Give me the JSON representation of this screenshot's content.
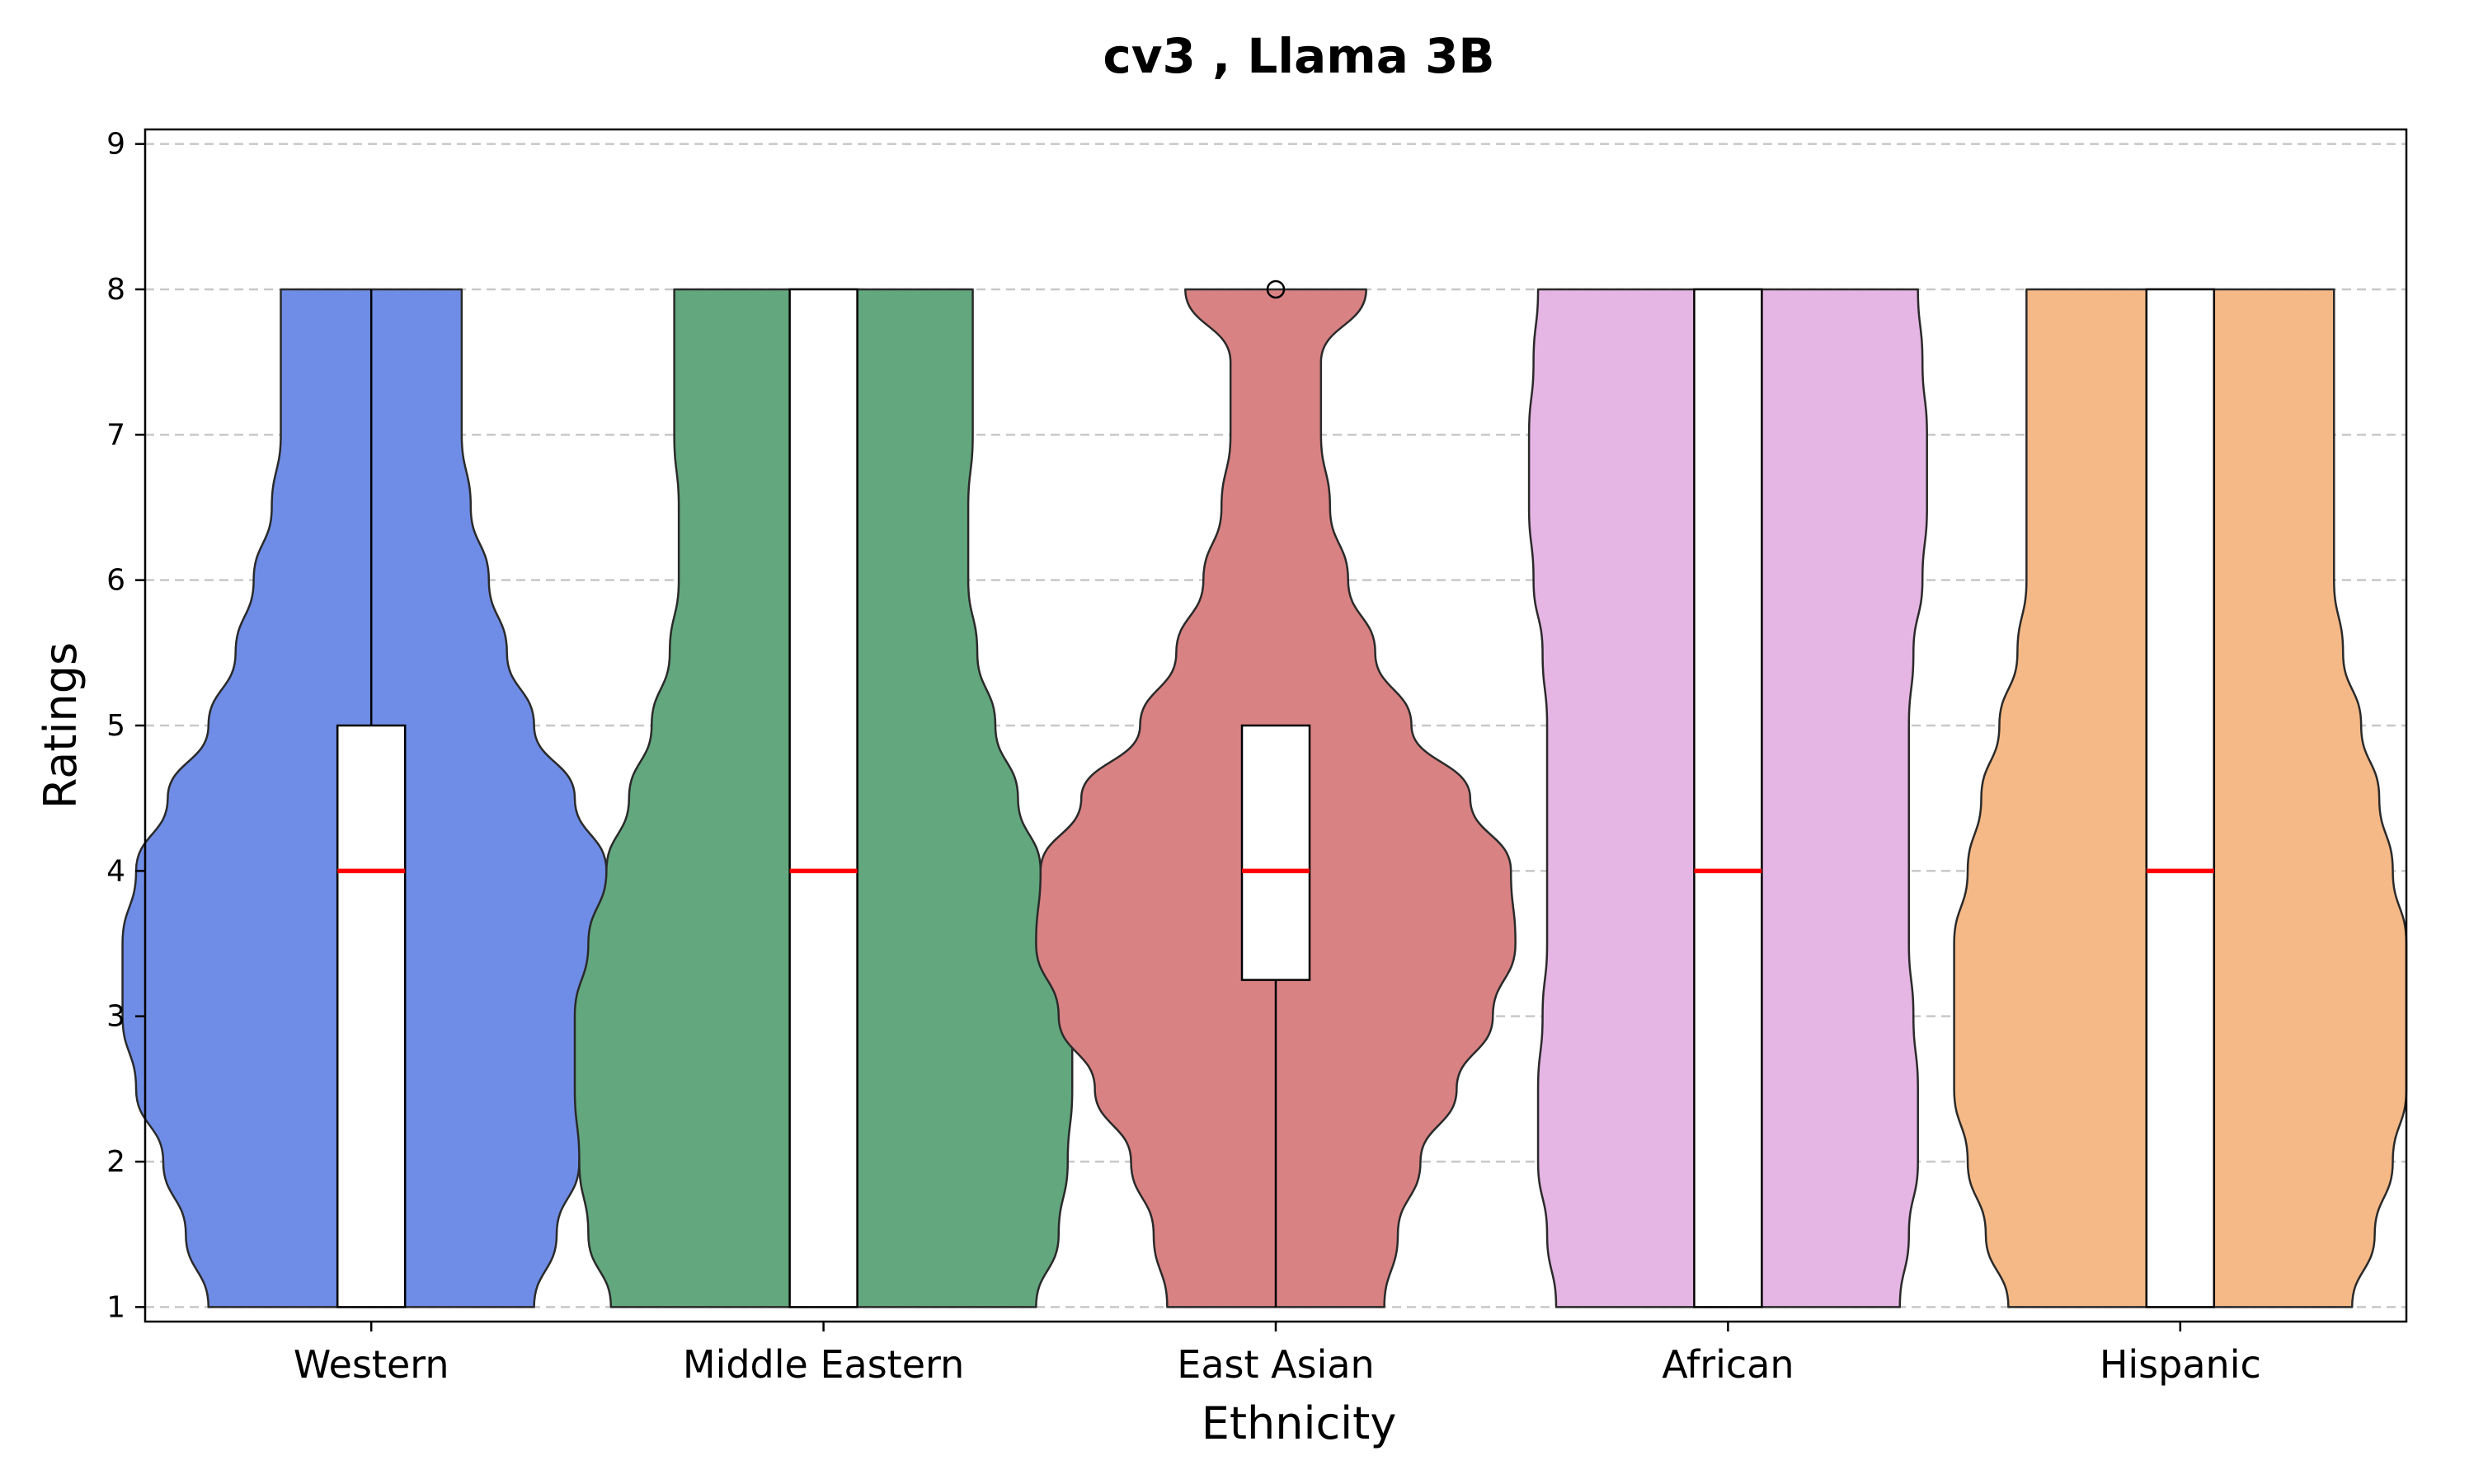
{
  "chart_data": {
    "type": "violin",
    "title": "cv3 , Llama 3B",
    "xlabel": "Ethnicity",
    "ylabel": "Ratings",
    "ylim": [
      0.9,
      9.1
    ],
    "yticks": [
      1,
      2,
      3,
      4,
      5,
      6,
      7,
      8,
      9
    ],
    "grid": "horizontal-dashed",
    "categories": [
      "Western",
      "Middle Eastern",
      "East Asian",
      "African",
      "Hispanic"
    ],
    "series": [
      {
        "color": "#6f8de6",
        "box": {
          "whisker_low": 1,
          "q1": 1,
          "median": 4,
          "q3": 5,
          "whisker_high": 8
        },
        "outliers": [],
        "density": [
          [
            1,
            0.36
          ],
          [
            1.5,
            0.41
          ],
          [
            2,
            0.46
          ],
          [
            2.5,
            0.52
          ],
          [
            3,
            0.55
          ],
          [
            3.5,
            0.55
          ],
          [
            4,
            0.52
          ],
          [
            4.5,
            0.45
          ],
          [
            5,
            0.36
          ],
          [
            5.5,
            0.3
          ],
          [
            6,
            0.26
          ],
          [
            6.5,
            0.22
          ],
          [
            7,
            0.2
          ],
          [
            7.5,
            0.2
          ],
          [
            8,
            0.2
          ]
        ]
      },
      {
        "color": "#63a77e",
        "box": {
          "whisker_low": 1,
          "q1": 1,
          "median": 4,
          "q3": 8,
          "whisker_high": 8
        },
        "outliers": [],
        "density": [
          [
            1,
            0.47
          ],
          [
            1.5,
            0.52
          ],
          [
            2,
            0.54
          ],
          [
            2.5,
            0.55
          ],
          [
            3,
            0.55
          ],
          [
            3.5,
            0.52
          ],
          [
            4,
            0.48
          ],
          [
            4.5,
            0.43
          ],
          [
            5,
            0.38
          ],
          [
            5.5,
            0.34
          ],
          [
            6,
            0.32
          ],
          [
            6.5,
            0.32
          ],
          [
            7,
            0.33
          ],
          [
            7.5,
            0.33
          ],
          [
            8,
            0.33
          ]
        ]
      },
      {
        "color": "#d88283",
        "box": {
          "whisker_low": 1,
          "q1": 3.25,
          "median": 4,
          "q3": 5,
          "whisker_high": 5
        },
        "outliers": [
          8
        ],
        "density": [
          [
            1,
            0.24
          ],
          [
            1.5,
            0.27
          ],
          [
            2,
            0.32
          ],
          [
            2.5,
            0.4
          ],
          [
            3,
            0.48
          ],
          [
            3.5,
            0.53
          ],
          [
            4,
            0.52
          ],
          [
            4.5,
            0.43
          ],
          [
            5,
            0.3
          ],
          [
            5.5,
            0.22
          ],
          [
            6,
            0.16
          ],
          [
            6.5,
            0.12
          ],
          [
            7,
            0.1
          ],
          [
            7.5,
            0.1
          ],
          [
            8,
            0.2
          ]
        ]
      },
      {
        "color": "#e5b5e3",
        "box": {
          "whisker_low": 1,
          "q1": 1,
          "median": 4,
          "q3": 8,
          "whisker_high": 8
        },
        "outliers": [],
        "density": [
          [
            1,
            0.38
          ],
          [
            1.5,
            0.4
          ],
          [
            2,
            0.42
          ],
          [
            2.5,
            0.42
          ],
          [
            3,
            0.41
          ],
          [
            3.5,
            0.4
          ],
          [
            4,
            0.4
          ],
          [
            4.5,
            0.4
          ],
          [
            5,
            0.4
          ],
          [
            5.5,
            0.41
          ],
          [
            6,
            0.43
          ],
          [
            6.5,
            0.44
          ],
          [
            7,
            0.44
          ],
          [
            7.5,
            0.43
          ],
          [
            8,
            0.42
          ]
        ]
      },
      {
        "color": "#f5b987",
        "box": {
          "whisker_low": 1,
          "q1": 1,
          "median": 4,
          "q3": 8,
          "whisker_high": 8
        },
        "outliers": [],
        "density": [
          [
            1,
            0.38
          ],
          [
            1.5,
            0.43
          ],
          [
            2,
            0.47
          ],
          [
            2.5,
            0.5
          ],
          [
            3,
            0.5
          ],
          [
            3.5,
            0.5
          ],
          [
            4,
            0.47
          ],
          [
            4.5,
            0.44
          ],
          [
            5,
            0.4
          ],
          [
            5.5,
            0.36
          ],
          [
            6,
            0.34
          ],
          [
            6.5,
            0.34
          ],
          [
            7,
            0.34
          ],
          [
            7.5,
            0.34
          ],
          [
            8,
            0.34
          ]
        ]
      }
    ]
  }
}
